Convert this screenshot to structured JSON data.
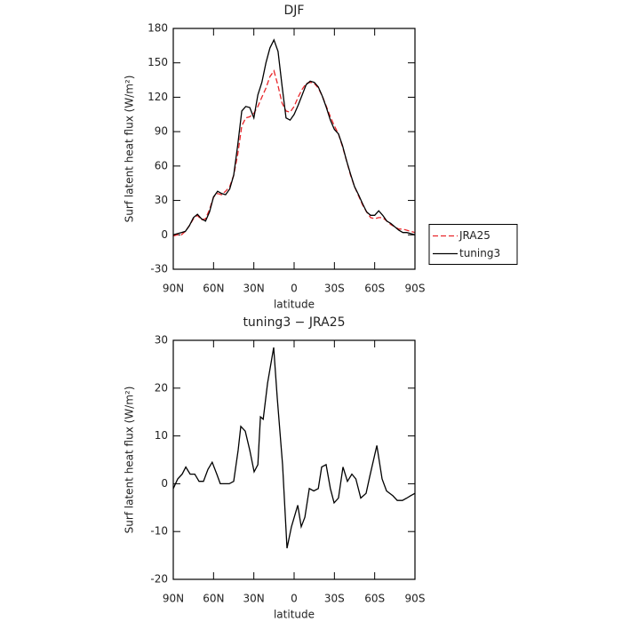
{
  "chart_data": [
    {
      "type": "line",
      "title": "DJF",
      "xlabel": "latitude",
      "ylabel": "Surf latent heat flux (W/m²)",
      "x": [
        90,
        87,
        84,
        81,
        78,
        75,
        72,
        69,
        66,
        63,
        60,
        57,
        54,
        51,
        48,
        45,
        42,
        39,
        36,
        33,
        30,
        27,
        24,
        21,
        18,
        15,
        12,
        9,
        6,
        3,
        0,
        -3,
        -6,
        -9,
        -12,
        -15,
        -18,
        -21,
        -24,
        -27,
        -30,
        -33,
        -36,
        -39,
        -42,
        -45,
        -48,
        -51,
        -54,
        -57,
        -60,
        -63,
        -66,
        -69,
        -72,
        -75,
        -78,
        -81,
        -84,
        -87,
        -90
      ],
      "series": [
        {
          "name": "JRA25",
          "color": "#e8262a",
          "linestyle": "dashed",
          "values": [
            -1,
            0,
            0,
            3,
            8,
            14,
            17,
            13,
            14,
            22,
            33,
            36,
            35,
            38,
            42,
            52,
            70,
            95,
            102,
            103,
            106,
            112,
            120,
            128,
            138,
            143,
            130,
            115,
            108,
            107,
            112,
            120,
            127,
            132,
            133,
            132,
            128,
            121,
            112,
            103,
            95,
            88,
            77,
            65,
            52,
            42,
            34,
            26,
            20,
            15,
            14,
            15,
            15,
            12,
            9,
            7,
            5,
            5,
            4,
            3,
            2
          ]
        },
        {
          "name": "tuning3",
          "color": "#000000",
          "linestyle": "solid",
          "values": [
            0,
            1,
            2,
            3,
            8,
            15,
            18,
            14,
            12,
            20,
            33,
            38,
            36,
            35,
            40,
            52,
            78,
            108,
            112,
            111,
            102,
            122,
            133,
            150,
            163,
            170,
            160,
            130,
            102,
            100,
            105,
            113,
            122,
            131,
            134,
            133,
            129,
            121,
            111,
            100,
            92,
            88,
            78,
            65,
            53,
            42,
            35,
            27,
            20,
            17,
            17,
            21,
            17,
            12,
            10,
            7,
            4,
            2,
            2,
            1,
            0
          ]
        }
      ],
      "xlim": [
        90,
        -90
      ],
      "xticks": [
        {
          "value": 90,
          "label": "90N"
        },
        {
          "value": 60,
          "label": "60N"
        },
        {
          "value": 30,
          "label": "30N"
        },
        0,
        {
          "value": -30,
          "label": "30S"
        },
        {
          "value": -60,
          "label": "60S"
        },
        {
          "value": -90,
          "label": "90S"
        }
      ],
      "ylim": [
        -30,
        180
      ],
      "yticks": [
        -30,
        0,
        30,
        60,
        90,
        120,
        150,
        180
      ],
      "legend": "right"
    },
    {
      "type": "line",
      "title": "tuning3 − JRA25",
      "xlabel": "latitude",
      "ylabel": "Surf latent heat flux (W/m²)",
      "x": [
        90,
        86.7,
        83.4,
        80.7,
        77.4,
        74,
        70.8,
        67.5,
        64.2,
        61,
        57.6,
        55,
        51.6,
        48.3,
        45,
        41.7,
        39.7,
        36.4,
        33,
        29.8,
        27,
        25.1,
        23,
        19.8,
        15.2,
        12.6,
        8.6,
        5.3,
        2,
        -2.7,
        -5.3,
        -8,
        -11.3,
        -14.6,
        -18,
        -20.5,
        -23.8,
        -27,
        -29.8,
        -33,
        -36.4,
        -39.7,
        -43,
        -46,
        -49.6,
        -53.6,
        -56.3,
        -61.6,
        -65.5,
        -68.8,
        -73.5,
        -76.8,
        -80.7,
        -84,
        -86.7,
        -90
      ],
      "values": [
        -1,
        1,
        2,
        3.5,
        2,
        2,
        0.5,
        0.5,
        3,
        4.5,
        2,
        0,
        0,
        0,
        0.5,
        7,
        12,
        11,
        7,
        2.5,
        4,
        14,
        13.5,
        21,
        28.5,
        18,
        4,
        -13.5,
        -9,
        -4.5,
        -9,
        -7,
        -1,
        -1.5,
        -1,
        3.5,
        4,
        -1,
        -4,
        -3,
        3.5,
        0.5,
        2,
        1,
        -3,
        -2,
        1.5,
        8,
        1,
        -1.5,
        -2.5,
        -3.5,
        -3.5,
        -3,
        -2.5,
        -2
      ],
      "color": "#000000",
      "xlim": [
        90,
        -90
      ],
      "xticks": [
        {
          "value": 90,
          "label": "90N"
        },
        {
          "value": 60,
          "label": "60N"
        },
        {
          "value": 30,
          "label": "30N"
        },
        0,
        {
          "value": -30,
          "label": "30S"
        },
        {
          "value": -60,
          "label": "60S"
        },
        {
          "value": -90,
          "label": "90S"
        }
      ],
      "ylim": [
        -20,
        30
      ],
      "yticks": [
        -20,
        -10,
        0,
        10,
        20,
        30
      ]
    }
  ]
}
